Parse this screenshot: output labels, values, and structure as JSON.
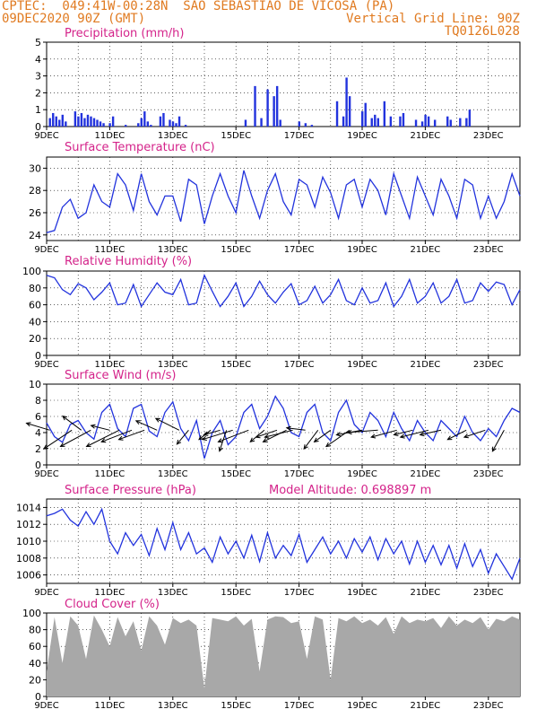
{
  "header": {
    "left_line1": "CPTEC:  049:41W-00:28N  SAO SEBASTIAO DE VICOSA (PA)",
    "left_line2": "09DEC2020 90Z (GMT)",
    "right_line2": "Vertical Grid Line: 90Z",
    "right_line3": "TQ0126L028"
  },
  "colors": {
    "header": "#e07a20",
    "title": "#d4238a",
    "series": "#2233dd",
    "cloud": "#a8a8a8",
    "axis": "#000000"
  },
  "x_axis": {
    "ticks": [
      0,
      2,
      4,
      6,
      8,
      10,
      12,
      14
    ],
    "tick_labels": [
      "9DEC",
      "11DEC",
      "13DEC",
      "15DEC",
      "17DEC",
      "19DEC",
      "21DEC",
      "23DEC"
    ],
    "range_days": [
      0,
      15
    ]
  },
  "chart_data": [
    {
      "type": "bar",
      "title": "Precipitation (mm/h)",
      "ylim": [
        0,
        5
      ],
      "yticks": [
        0,
        1,
        2,
        3,
        4,
        5
      ],
      "x_unit": "days since 09DEC2020",
      "x": [
        0.1,
        0.2,
        0.3,
        0.4,
        0.5,
        0.6,
        0.9,
        1.0,
        1.1,
        1.2,
        1.3,
        1.4,
        1.5,
        1.6,
        1.7,
        1.8,
        2.0,
        2.1,
        2.5,
        2.9,
        3.0,
        3.1,
        3.2,
        3.3,
        3.6,
        3.7,
        3.9,
        4.0,
        4.1,
        4.2,
        4.4,
        6.3,
        6.6,
        6.8,
        7.0,
        7.2,
        7.3,
        7.4,
        8.0,
        8.2,
        8.4,
        9.2,
        9.4,
        9.5,
        9.6,
        10.0,
        10.1,
        10.3,
        10.4,
        10.5,
        10.7,
        10.9,
        11.2,
        11.3,
        11.7,
        11.9,
        12.0,
        12.1,
        12.3,
        12.7,
        12.8,
        13.1,
        13.3,
        13.4
      ],
      "values": [
        0.5,
        0.8,
        0.6,
        0.4,
        0.7,
        0.3,
        0.9,
        0.6,
        0.8,
        0.5,
        0.7,
        0.6,
        0.5,
        0.4,
        0.3,
        0.2,
        0.2,
        0.6,
        0.1,
        0.2,
        0.5,
        0.9,
        0.3,
        0.1,
        0.6,
        0.8,
        0.4,
        0.3,
        0.2,
        0.6,
        0.1,
        0.4,
        2.4,
        0.5,
        2.2,
        1.8,
        2.4,
        0.4,
        0.3,
        0.2,
        0.1,
        1.5,
        0.6,
        2.9,
        1.8,
        0.9,
        1.4,
        0.5,
        0.7,
        0.5,
        1.5,
        0.6,
        0.6,
        0.8,
        0.4,
        0.3,
        0.7,
        0.6,
        0.4,
        0.6,
        0.4,
        0.5,
        0.5,
        1.0
      ]
    },
    {
      "type": "line",
      "title": "Surface Temperature (nC)",
      "ylim": [
        23.5,
        31
      ],
      "yticks": [
        24,
        26,
        28,
        30
      ],
      "x_unit": "days since 09DEC2020",
      "x": [
        0,
        0.25,
        0.5,
        0.75,
        1,
        1.25,
        1.5,
        1.75,
        2,
        2.25,
        2.5,
        2.75,
        3,
        3.25,
        3.5,
        3.75,
        4,
        4.25,
        4.5,
        4.75,
        5,
        5.25,
        5.5,
        5.75,
        6,
        6.25,
        6.5,
        6.75,
        7,
        7.25,
        7.5,
        7.75,
        8,
        8.25,
        8.5,
        8.75,
        9,
        9.25,
        9.5,
        9.75,
        10,
        10.25,
        10.5,
        10.75,
        11,
        11.25,
        11.5,
        11.75,
        12,
        12.25,
        12.5,
        12.75,
        13,
        13.25,
        13.5,
        13.75,
        14,
        14.25,
        14.5,
        14.75,
        15
      ],
      "values": [
        24.2,
        24.4,
        26.5,
        27.2,
        25.5,
        26,
        28.5,
        27,
        26.5,
        29.5,
        28.5,
        26.2,
        29.5,
        27,
        25.8,
        27.5,
        27.5,
        25.2,
        29,
        28.5,
        25,
        27.5,
        29.5,
        27.5,
        26,
        29.8,
        27.5,
        25.5,
        28,
        29.5,
        27,
        25.8,
        29,
        28.5,
        26.5,
        29.2,
        27.8,
        25.5,
        28.5,
        29,
        26.5,
        29,
        28,
        25.8,
        29.5,
        27.5,
        25.5,
        29.2,
        27.5,
        25.8,
        29,
        27.5,
        25.5,
        29,
        28.5,
        25.5,
        27.5,
        25.5,
        27,
        29.5,
        27.5
      ]
    },
    {
      "type": "line",
      "title": "Relative Humidity (%)",
      "ylim": [
        0,
        100
      ],
      "yticks": [
        0,
        20,
        40,
        60,
        80,
        100
      ],
      "x_unit": "days since 09DEC2020",
      "x": [
        0,
        0.25,
        0.5,
        0.75,
        1,
        1.25,
        1.5,
        1.75,
        2,
        2.25,
        2.5,
        2.75,
        3,
        3.25,
        3.5,
        3.75,
        4,
        4.25,
        4.5,
        4.75,
        5,
        5.25,
        5.5,
        5.75,
        6,
        6.25,
        6.5,
        6.75,
        7,
        7.25,
        7.5,
        7.75,
        8,
        8.25,
        8.5,
        8.75,
        9,
        9.25,
        9.5,
        9.75,
        10,
        10.25,
        10.5,
        10.75,
        11,
        11.25,
        11.5,
        11.75,
        12,
        12.25,
        12.5,
        12.75,
        13,
        13.25,
        13.5,
        13.75,
        14,
        14.25,
        14.5,
        14.75,
        15
      ],
      "values": [
        95,
        92,
        78,
        72,
        85,
        80,
        66,
        75,
        86,
        60,
        62,
        84,
        58,
        72,
        86,
        75,
        72,
        90,
        60,
        62,
        95,
        76,
        58,
        70,
        86,
        58,
        70,
        88,
        72,
        62,
        75,
        85,
        60,
        65,
        82,
        62,
        72,
        90,
        65,
        60,
        80,
        62,
        65,
        86,
        58,
        70,
        90,
        62,
        70,
        86,
        62,
        70,
        90,
        62,
        65,
        86,
        76,
        87,
        84,
        60,
        78
      ]
    },
    {
      "type": "line",
      "title": "Surface Wind (m/s)",
      "ylim": [
        0,
        10
      ],
      "yticks": [
        0,
        2,
        4,
        6,
        8,
        10
      ],
      "x_unit": "days since 09DEC2020",
      "x": [
        0,
        0.25,
        0.5,
        0.75,
        1,
        1.25,
        1.5,
        1.75,
        2,
        2.25,
        2.5,
        2.75,
        3,
        3.25,
        3.5,
        3.75,
        4,
        4.25,
        4.5,
        4.75,
        5,
        5.25,
        5.5,
        5.75,
        6,
        6.25,
        6.5,
        6.75,
        7,
        7.25,
        7.5,
        7.75,
        8,
        8.25,
        8.5,
        8.75,
        9,
        9.25,
        9.5,
        9.75,
        10,
        10.25,
        10.5,
        10.75,
        11,
        11.25,
        11.5,
        11.75,
        12,
        12.25,
        12.5,
        12.75,
        13,
        13.25,
        13.5,
        13.75,
        14,
        14.25,
        14.5,
        14.75,
        15
      ],
      "values": [
        5.2,
        3.5,
        2.8,
        5,
        5.5,
        4,
        3.2,
        6.5,
        7.5,
        4.5,
        3.5,
        7,
        7.5,
        4.2,
        3.5,
        6.5,
        7.8,
        4.5,
        3,
        5.5,
        0.8,
        4,
        5.5,
        2.5,
        3.5,
        6.5,
        7.5,
        4.5,
        6,
        8.5,
        7,
        4,
        3.5,
        6.5,
        7.5,
        4,
        3,
        6.5,
        8,
        5,
        4,
        6.5,
        5.5,
        3.5,
        6.5,
        4.5,
        3,
        5.5,
        4,
        3,
        5.5,
        4.5,
        3.5,
        6,
        4,
        3,
        4.5,
        3.5,
        5.5,
        7,
        6.5
      ],
      "arrows": [
        {
          "x": 0.1,
          "u": -1.0,
          "v": 0.3
        },
        {
          "x": 0.8,
          "u": -1.2,
          "v": -0.8
        },
        {
          "x": 1.1,
          "u": -0.8,
          "v": 0.6
        },
        {
          "x": 1.4,
          "u": -1.3,
          "v": -0.7
        },
        {
          "x": 2.0,
          "u": -0.8,
          "v": 0.2
        },
        {
          "x": 2.3,
          "u": -1.4,
          "v": -0.7
        },
        {
          "x": 2.7,
          "u": -1.3,
          "v": -0.5
        },
        {
          "x": 3.1,
          "u": -1.1,
          "v": -0.4
        },
        {
          "x": 3.5,
          "u": -0.9,
          "v": 0.4
        },
        {
          "x": 4.2,
          "u": -1.0,
          "v": 0.5
        },
        {
          "x": 4.5,
          "u": -0.5,
          "v": -0.6
        },
        {
          "x": 5.7,
          "u": -0.3,
          "v": -0.9
        },
        {
          "x": 5.2,
          "u": -0.5,
          "v": -0.4
        },
        {
          "x": 5.5,
          "u": -0.7,
          "v": -0.2
        },
        {
          "x": 5.9,
          "u": -1.3,
          "v": -0.4
        },
        {
          "x": 6.4,
          "u": -1.3,
          "v": -0.5
        },
        {
          "x": 6.9,
          "u": -0.6,
          "v": -0.5
        },
        {
          "x": 7.3,
          "u": -0.9,
          "v": -0.3
        },
        {
          "x": 7.6,
          "u": -1.0,
          "v": -0.5
        },
        {
          "x": 7.8,
          "u": -1.2,
          "v": -0.3
        },
        {
          "x": 8.2,
          "u": -0.8,
          "v": 0.1
        },
        {
          "x": 8.6,
          "u": -0.6,
          "v": -0.8
        },
        {
          "x": 9.0,
          "u": -0.7,
          "v": -0.5
        },
        {
          "x": 9.6,
          "u": -1.0,
          "v": -0.7
        },
        {
          "x": 10.0,
          "u": -1.1,
          "v": -0.2
        },
        {
          "x": 10.5,
          "u": -1.3,
          "v": -0.1
        },
        {
          "x": 11.1,
          "u": -1.1,
          "v": -0.3
        },
        {
          "x": 11.6,
          "u": -0.8,
          "v": -0.2
        },
        {
          "x": 12.1,
          "u": -1.2,
          "v": -0.3
        },
        {
          "x": 12.5,
          "u": -0.9,
          "v": -0.2
        },
        {
          "x": 13.3,
          "u": -0.8,
          "v": -0.4
        },
        {
          "x": 13.9,
          "u": -0.9,
          "v": -0.3
        },
        {
          "x": 14.5,
          "u": -0.5,
          "v": -0.9
        }
      ]
    },
    {
      "type": "line",
      "title": "Surface Pressure (hPa)",
      "annotation": "Model Altitude: 0.698897  m",
      "ylim": [
        1005,
        1015
      ],
      "yticks": [
        1006,
        1008,
        1010,
        1012,
        1014
      ],
      "x_unit": "days since 09DEC2020",
      "x": [
        0,
        0.25,
        0.5,
        0.75,
        1,
        1.25,
        1.5,
        1.75,
        2,
        2.25,
        2.5,
        2.75,
        3,
        3.25,
        3.5,
        3.75,
        4,
        4.25,
        4.5,
        4.75,
        5,
        5.25,
        5.5,
        5.75,
        6,
        6.25,
        6.5,
        6.75,
        7,
        7.25,
        7.5,
        7.75,
        8,
        8.25,
        8.5,
        8.75,
        9,
        9.25,
        9.5,
        9.75,
        10,
        10.25,
        10.5,
        10.75,
        11,
        11.25,
        11.5,
        11.75,
        12,
        12.25,
        12.5,
        12.75,
        13,
        13.25,
        13.5,
        13.75,
        14,
        14.25,
        14.5,
        14.75,
        15
      ],
      "values": [
        1013,
        1013.3,
        1013.8,
        1012.5,
        1011.8,
        1013.5,
        1012,
        1013.8,
        1010,
        1008.5,
        1011,
        1009.5,
        1010.8,
        1008.3,
        1011.5,
        1009,
        1012.2,
        1009,
        1011,
        1008.5,
        1009.2,
        1007.5,
        1010.5,
        1008.5,
        1010,
        1008,
        1010.7,
        1007.6,
        1011,
        1008,
        1009.5,
        1008.3,
        1010.8,
        1007.5,
        1009,
        1010.5,
        1008.5,
        1010,
        1008,
        1010.3,
        1008.7,
        1010.5,
        1007.8,
        1010.3,
        1008.5,
        1010,
        1007.3,
        1010,
        1007.5,
        1009.5,
        1007.2,
        1009.5,
        1006.8,
        1009.7,
        1007,
        1009,
        1006.2,
        1008.5,
        1007,
        1005.5,
        1008
      ]
    },
    {
      "type": "area",
      "title": "Cloud Cover (%)",
      "ylim": [
        0,
        100
      ],
      "yticks": [
        0,
        20,
        40,
        60,
        80,
        100
      ],
      "x_unit": "days since 09DEC2020",
      "x": [
        0,
        0.25,
        0.5,
        0.75,
        1,
        1.25,
        1.5,
        1.75,
        2,
        2.25,
        2.5,
        2.75,
        3,
        3.25,
        3.5,
        3.75,
        4,
        4.25,
        4.5,
        4.75,
        5,
        5.25,
        5.5,
        5.75,
        6,
        6.25,
        6.5,
        6.75,
        7,
        7.25,
        7.5,
        7.75,
        8,
        8.25,
        8.5,
        8.75,
        9,
        9.25,
        9.5,
        9.75,
        10,
        10.25,
        10.5,
        10.75,
        11,
        11.25,
        11.5,
        11.75,
        12,
        12.25,
        12.5,
        12.75,
        13,
        13.25,
        13.5,
        13.75,
        14,
        14.25,
        14.5,
        14.75,
        15
      ],
      "values": [
        30,
        95,
        40,
        96,
        85,
        45,
        97,
        80,
        60,
        95,
        72,
        90,
        55,
        96,
        85,
        62,
        94,
        88,
        92,
        85,
        10,
        94,
        92,
        90,
        96,
        85,
        93,
        30,
        92,
        96,
        95,
        88,
        90,
        45,
        96,
        92,
        20,
        94,
        90,
        96,
        88,
        92,
        85,
        95,
        75,
        96,
        88,
        92,
        90,
        94,
        82,
        96,
        85,
        92,
        88,
        95,
        80,
        93,
        90,
        96,
        92
      ]
    }
  ]
}
